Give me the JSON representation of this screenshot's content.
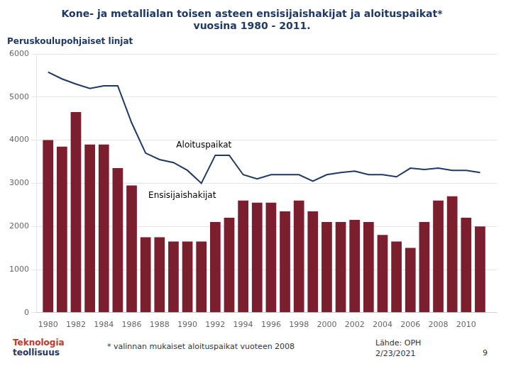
{
  "chart_data": {
    "type": "bar",
    "title": [
      "Kone- ja metallialan toisen asteen ensisijaishakijat ja aloituspaikat*",
      "vuosina 1980 - 2011."
    ],
    "subtitle": "Peruskoulupohjaiset linjat",
    "x": [
      1980,
      1981,
      1982,
      1983,
      1984,
      1985,
      1986,
      1987,
      1988,
      1989,
      1990,
      1991,
      1992,
      1993,
      1994,
      1995,
      1996,
      1997,
      1998,
      1999,
      2000,
      2001,
      2002,
      2003,
      2004,
      2005,
      2006,
      2007,
      2008,
      2009,
      2010,
      2011
    ],
    "series": [
      {
        "type": "bar",
        "color": "#7B1F2E",
        "values": [
          4000,
          3850,
          4650,
          3900,
          3900,
          3350,
          2950,
          1750,
          1750,
          1650,
          1650,
          1650,
          2100,
          2200,
          2600,
          2550,
          2550,
          2350,
          2600,
          2350,
          2100,
          2100,
          2150,
          2100,
          1800,
          1650,
          1500,
          2100,
          2600,
          2700,
          2200,
          2000
        ]
      },
      {
        "type": "line",
        "color": "#1F3864",
        "values": [
          5580,
          5420,
          5300,
          5200,
          5260,
          5260,
          4400,
          3700,
          3550,
          3480,
          3300,
          3000,
          3650,
          3650,
          3200,
          3100,
          3200,
          3200,
          3200,
          3050,
          3200,
          3250,
          3280,
          3200,
          3200,
          3150,
          3350,
          3320,
          3350,
          3300,
          3300,
          3250
        ]
      }
    ],
    "xlim": [
      1979.2,
      2012.2
    ],
    "xticks": [
      1980,
      1982,
      1984,
      1986,
      1988,
      1990,
      1992,
      1994,
      1996,
      1998,
      2000,
      2002,
      2004,
      2006,
      2008,
      2010
    ],
    "ylim": [
      0,
      6000
    ],
    "yticks": [
      0,
      1000,
      2000,
      3000,
      4000,
      5000,
      6000
    ],
    "grid": "y",
    "annotations": [
      {
        "text": "Aloituspaikat",
        "x": 1989.2,
        "y": 3780
      },
      {
        "text": "Ensisijaishakijat",
        "x": 1987.2,
        "y": 2620
      }
    ],
    "footnote": "* valinnan mukaiset aloituspaikat vuoteen 2008",
    "source": [
      "Lähde: OPH",
      "2/23/2021"
    ],
    "page_num": "9",
    "logo": [
      {
        "text": "Teknologia",
        "color": "#C0392B"
      },
      {
        "text": "teollisuus",
        "color": "#1F3864"
      }
    ]
  }
}
